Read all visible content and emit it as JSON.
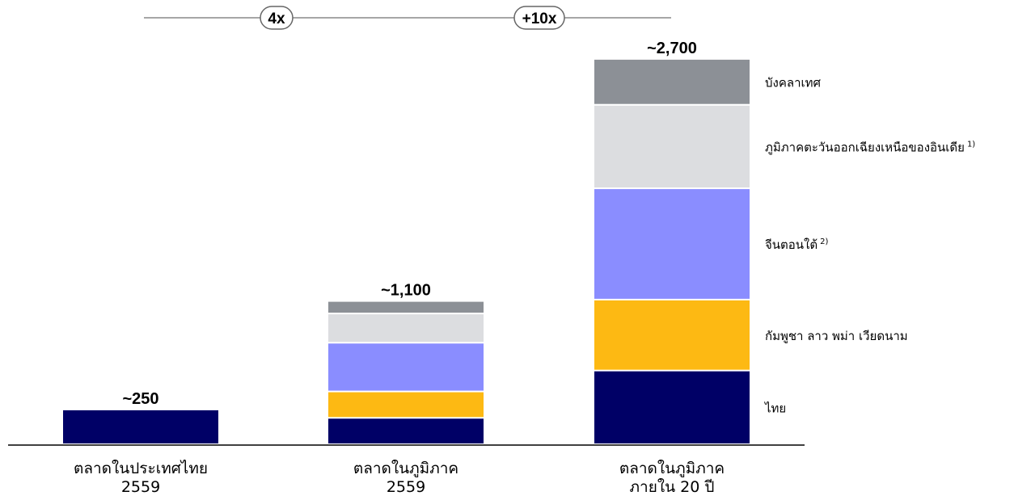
{
  "chart_data": {
    "type": "bar",
    "stacked": true,
    "categories": [
      {
        "line1": "ตลาดในประเทศไทย",
        "line2": "2559"
      },
      {
        "line1": "ตลาดในภูมิภาค",
        "line2": "2559"
      },
      {
        "line1": "ตลาดในภูมิภาค",
        "line2": "ภายใน 20 ปี"
      }
    ],
    "totals": [
      "~250",
      "~1,100",
      "~2,700"
    ],
    "series": [
      {
        "name": "ไทย",
        "note": "",
        "color": "#000066",
        "values": [
          250,
          190,
          530
        ]
      },
      {
        "name": "กัมพูชา ลาว พม่า เวียดนาม",
        "note": "",
        "color": "#fdb913",
        "values": [
          0,
          190,
          510
        ]
      },
      {
        "name": "จีนตอนใต้",
        "note": "2)",
        "color": "#8a8dff",
        "values": [
          0,
          350,
          800
        ]
      },
      {
        "name": "ภูมิภาคตะวันออกเฉียงเหนือของอินเดีย",
        "note": "1)",
        "color": "#dcdde0",
        "values": [
          0,
          210,
          600
        ]
      },
      {
        "name": "บังคลาเทศ",
        "note": "",
        "color": "#8c9096",
        "values": [
          0,
          90,
          330
        ]
      }
    ],
    "multipliers": [
      "4x",
      "+10x"
    ],
    "ylim": [
      0,
      2800
    ],
    "grid": false,
    "legend_position": "right of last bar"
  }
}
